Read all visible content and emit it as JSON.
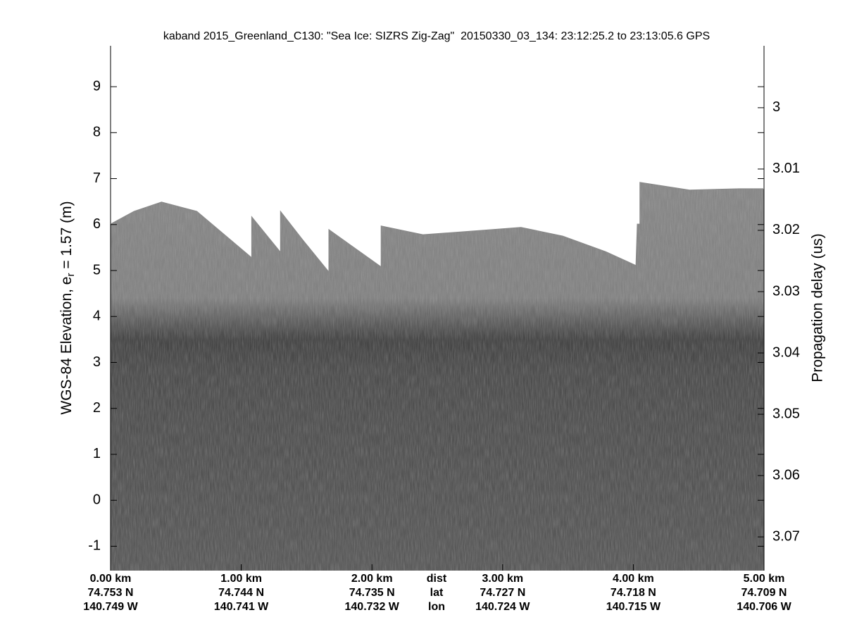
{
  "chart_data": {
    "type": "echogram",
    "title": "kaband 2015_Greenland_C130: \"Sea Ice: SIZRS Zig-Zag\"  20150330_03_134: 23:12:25.2 to 23:13:05.6 GPS",
    "ylabel": [
      "WGS-84 Elevation, e",
      "r",
      " = 1.57 (m)"
    ],
    "y2label": "Propagation delay (us)",
    "xlim": [
      0,
      5
    ],
    "xticks": [
      {
        "value": 0,
        "label": "0.00 km"
      },
      {
        "value": 1,
        "label": "1.00 km"
      },
      {
        "value": 2,
        "label": "2.00 km"
      },
      {
        "value": 3,
        "label": "3.00 km"
      },
      {
        "value": 4,
        "label": "4.00 km"
      },
      {
        "value": 5,
        "label": "5.00 km"
      }
    ],
    "lat_labels": [
      "74.753 N",
      "74.744 N",
      "74.735 N",
      "74.727 N",
      "74.718 N",
      "74.709 N"
    ],
    "lon_labels": [
      "140.749 W",
      "140.741 W",
      "140.732 W",
      "140.724 W",
      "140.715 W",
      "140.706 W"
    ],
    "row_labels": [
      "dist",
      "lat",
      "lon"
    ],
    "ylim": [
      -1.53,
      9.89
    ],
    "yticks": [
      -1,
      0,
      1,
      2,
      3,
      4,
      5,
      6,
      7,
      8,
      9
    ],
    "y2lim": [
      3.0755,
      2.9899
    ],
    "y2ticks": [
      3,
      3.01,
      3.02,
      3.03,
      3.04,
      3.05,
      3.06,
      3.07
    ],
    "surface": {
      "distance": [
        0,
        0.18,
        0.39,
        0.66,
        1.08,
        1.08,
        1.3,
        1.3,
        1.47,
        1.67,
        1.67,
        2.07,
        2.07,
        2.39,
        2.82,
        3.14,
        3.46,
        3.79,
        4.02,
        4.03,
        4.05,
        4.05,
        4.43,
        4.81,
        5
      ],
      "elevation": [
        6.01,
        6.29,
        6.49,
        6.29,
        5.28,
        6.17,
        5.4,
        6.29,
        5.67,
        4.97,
        5.89,
        5.08,
        5.97,
        5.78,
        5.87,
        5.94,
        5.75,
        5.41,
        5.11,
        6.01,
        6.01,
        6.92,
        6.75,
        6.78,
        6.78
      ]
    }
  }
}
